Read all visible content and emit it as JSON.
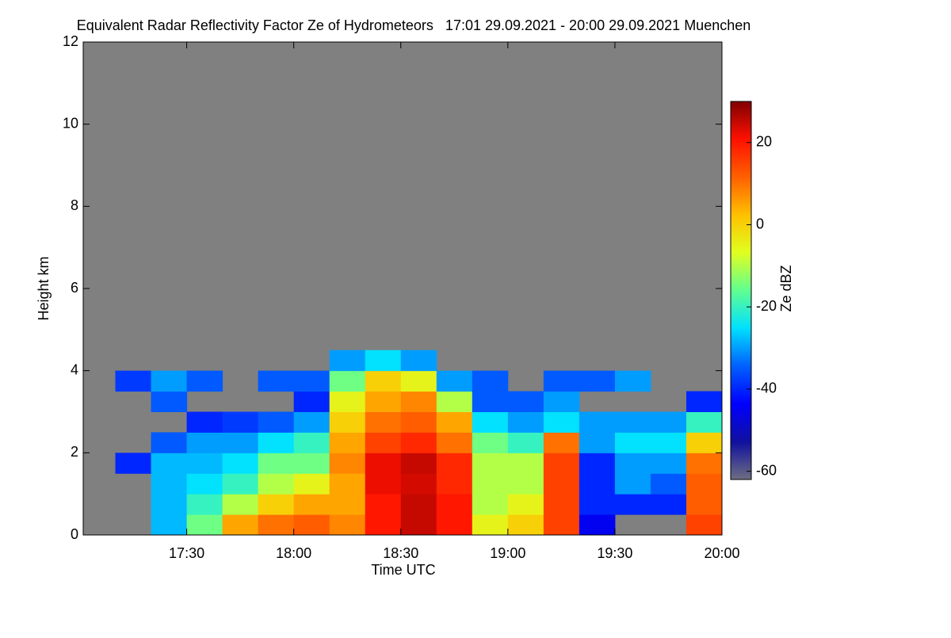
{
  "chart_data": {
    "type": "heatmap",
    "title": "Equivalent Radar Reflectivity Factor Ze of Hydrometeors   17:01 29.09.2021 - 20:00 29.09.2021 Muenchen",
    "xlabel": "Time UTC",
    "ylabel": "Height km",
    "colorbar_label": "Ze dBZ",
    "x": [
      1025,
      1035,
      1045,
      1055,
      1065,
      1075,
      1085,
      1095,
      1105,
      1115,
      1125,
      1135,
      1145,
      1155,
      1165,
      1175,
      1185,
      1195
    ],
    "y": [
      0.25,
      0.75,
      1.25,
      1.75,
      2.25,
      2.75,
      3.25,
      3.75,
      4.25
    ],
    "z": [
      [
        null,
        null,
        -28,
        -15,
        5,
        10,
        12,
        8,
        20,
        25,
        20,
        -5,
        0,
        15,
        -45,
        null,
        null,
        15
      ],
      [
        null,
        null,
        -28,
        -20,
        -10,
        0,
        5,
        5,
        20,
        25,
        20,
        -10,
        -5,
        15,
        -40,
        -40,
        -40,
        12
      ],
      [
        null,
        null,
        -28,
        -25,
        -20,
        -10,
        -5,
        5,
        22,
        24,
        18,
        -10,
        -10,
        15,
        -40,
        -30,
        -35,
        12
      ],
      [
        null,
        -40,
        -28,
        -28,
        -25,
        -15,
        -15,
        8,
        22,
        25,
        18,
        -10,
        -10,
        15,
        -40,
        -30,
        -30,
        10
      ],
      [
        null,
        null,
        -35,
        -30,
        -30,
        -25,
        -20,
        5,
        15,
        18,
        10,
        -15,
        -20,
        10,
        -30,
        -25,
        -25,
        0
      ],
      [
        null,
        null,
        null,
        -40,
        -38,
        -35,
        -30,
        0,
        10,
        12,
        5,
        -25,
        -30,
        -25,
        -30,
        -30,
        -30,
        -20
      ],
      [
        null,
        null,
        -35,
        null,
        null,
        null,
        -40,
        -5,
        5,
        8,
        -10,
        -35,
        -35,
        -30,
        null,
        null,
        null,
        -40
      ],
      [
        null,
        -38,
        -30,
        -35,
        null,
        -35,
        -35,
        -15,
        0,
        -5,
        -30,
        -35,
        null,
        -35,
        -35,
        -30,
        null,
        null
      ],
      [
        null,
        null,
        null,
        null,
        null,
        null,
        null,
        -30,
        -25,
        -30,
        null,
        null,
        null,
        null,
        null,
        null,
        null,
        null
      ]
    ],
    "xlim": [
      1021,
      1200
    ],
    "xticks": [
      {
        "value": 1050,
        "label": "17:30"
      },
      {
        "value": 1080,
        "label": "18:00"
      },
      {
        "value": 1110,
        "label": "18:30"
      },
      {
        "value": 1140,
        "label": "19:00"
      },
      {
        "value": 1170,
        "label": "19:30"
      },
      {
        "value": 1200,
        "label": "20:00"
      }
    ],
    "ylim": [
      0,
      12
    ],
    "yticks": [
      0,
      2,
      4,
      6,
      8,
      10,
      12
    ],
    "clim": [
      -62,
      30
    ],
    "cticks": [
      -60,
      -40,
      -20,
      0,
      20
    ],
    "colormap": [
      "#6e6e82",
      "#1010a0",
      "#0000ff",
      "#0060ff",
      "#00e0ff",
      "#60ff90",
      "#e0ff20",
      "#ffc000",
      "#ff6000",
      "#ff1000",
      "#800000"
    ],
    "background_color": "#808080"
  }
}
